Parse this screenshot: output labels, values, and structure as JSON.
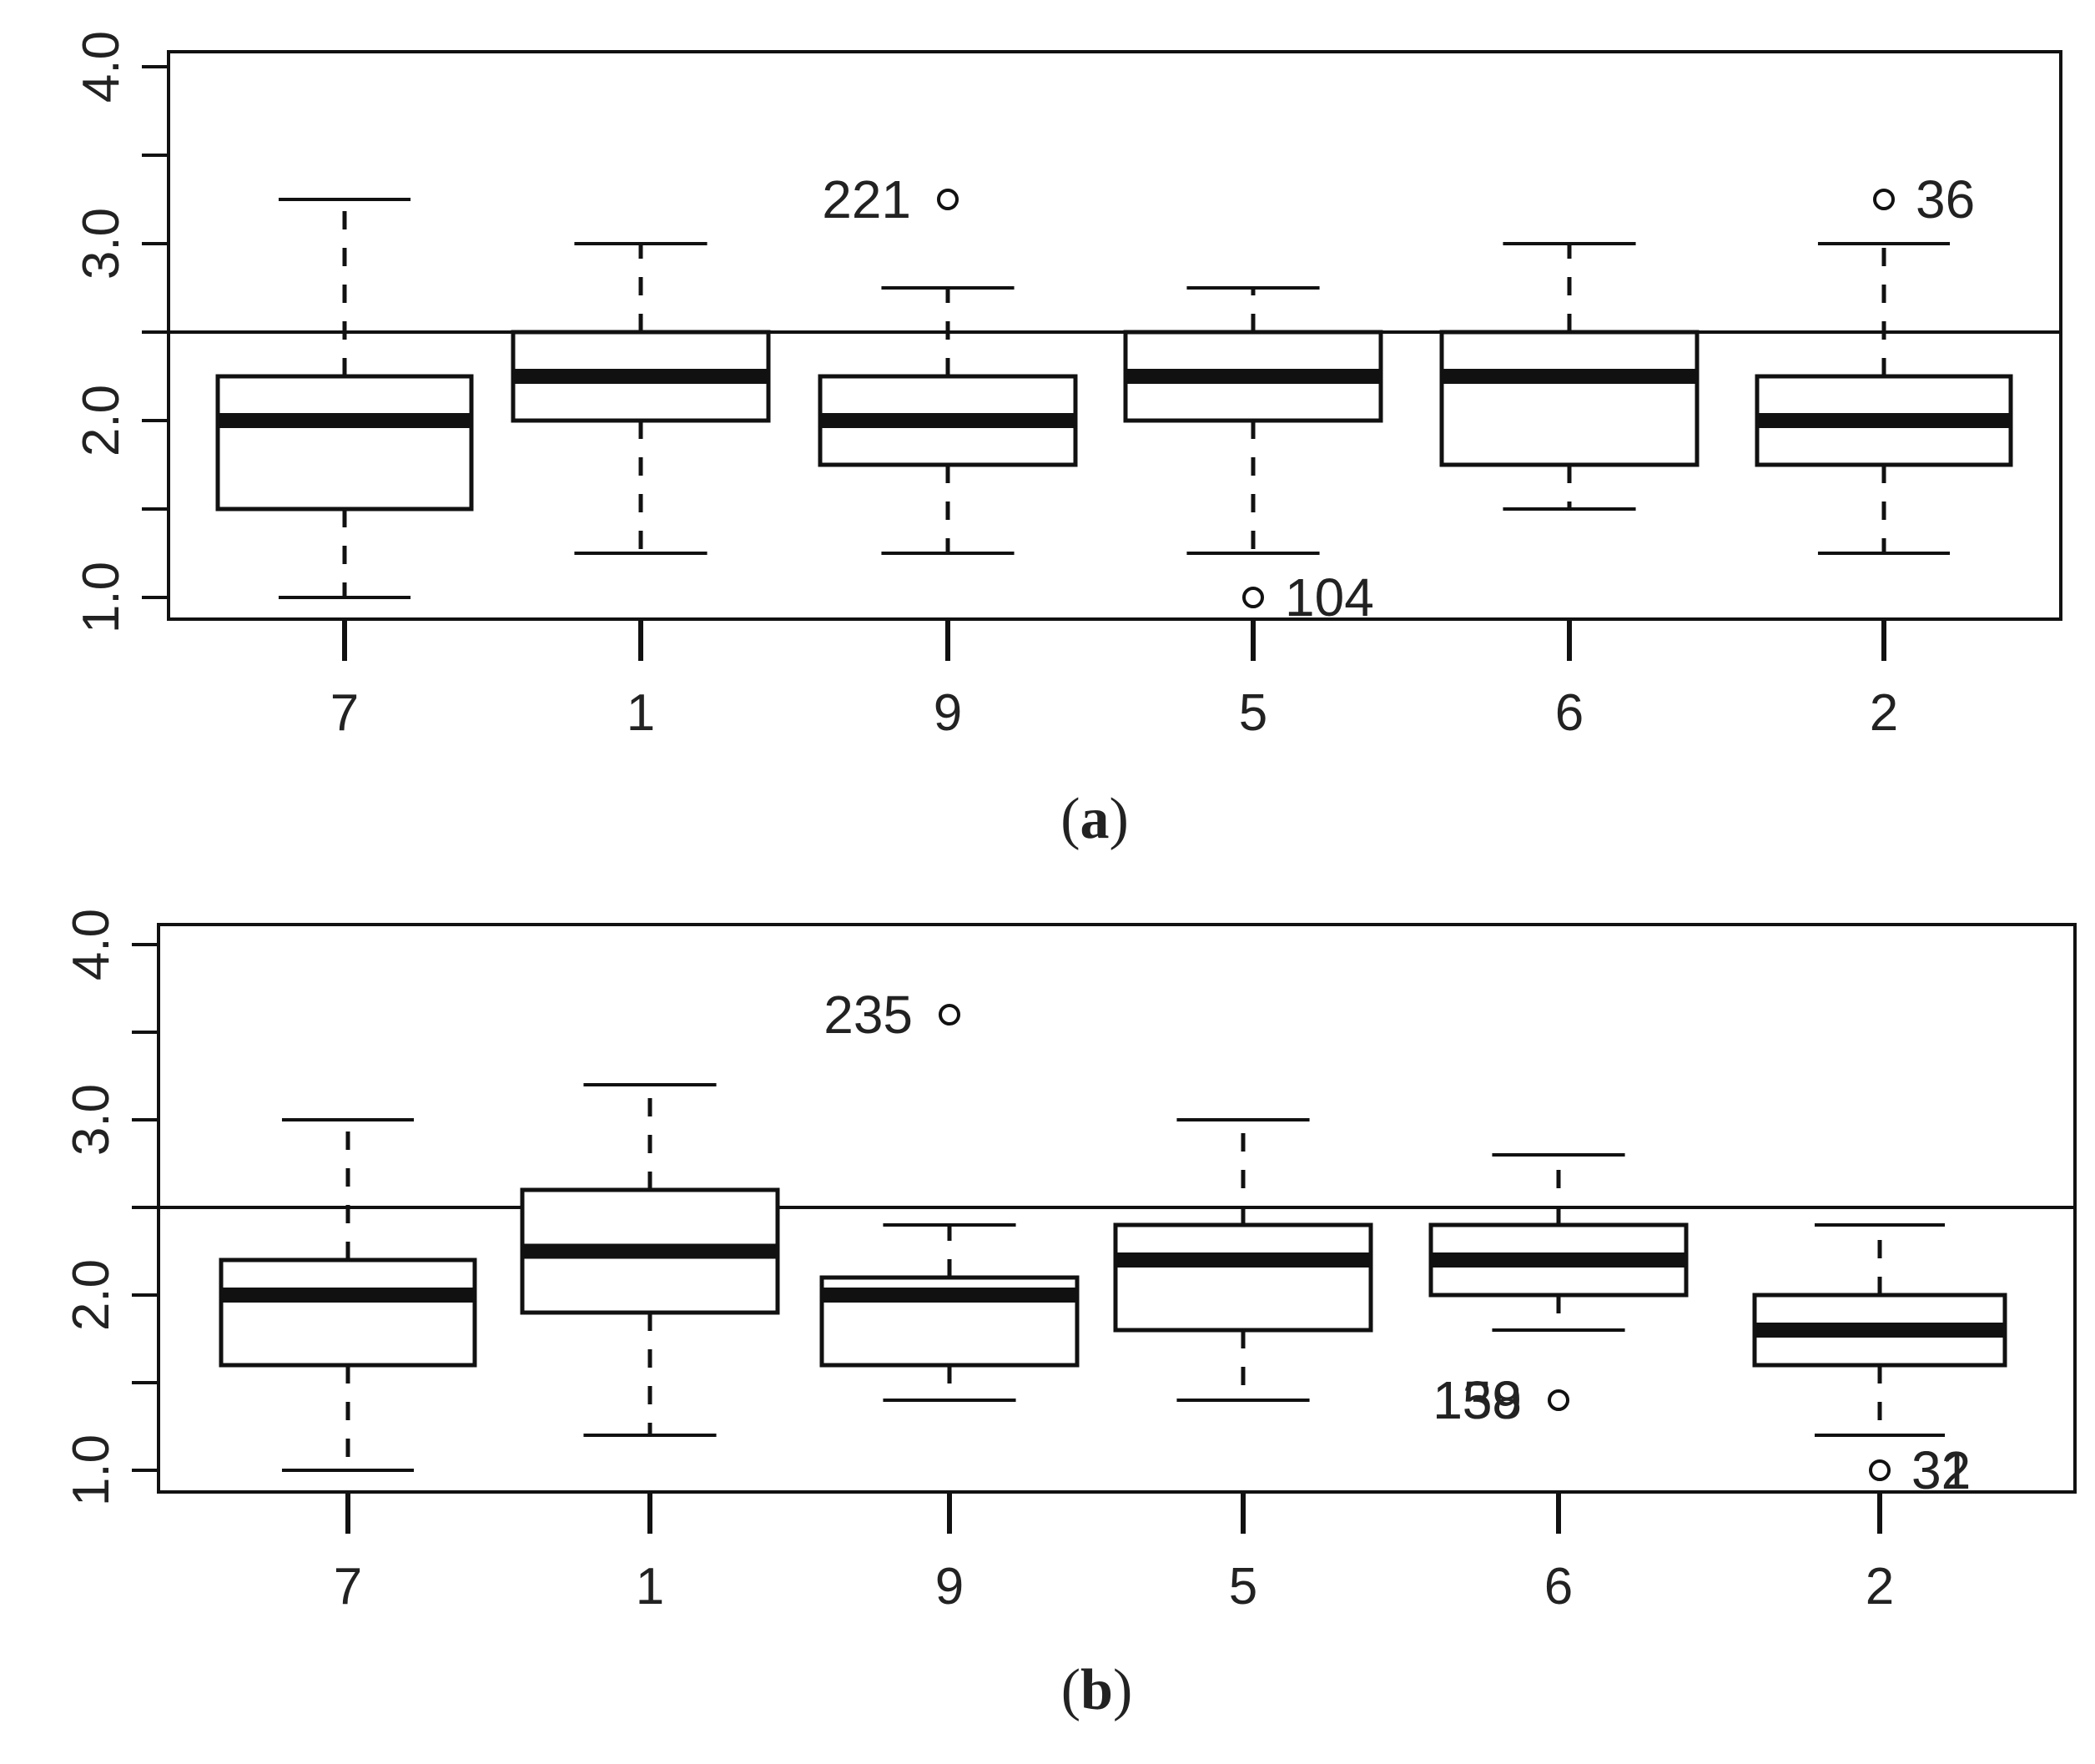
{
  "chart_data": [
    {
      "type": "box",
      "panel_label": "(a)",
      "panel_letter": "a",
      "ylim": [
        0.75,
        4.2
      ],
      "yticks": [
        1.0,
        1.5,
        2.0,
        2.5,
        3.0,
        3.5,
        4.0
      ],
      "ytick_labels": [
        "1.0",
        "2.0",
        "3.0",
        "4.0"
      ],
      "ytick_label_values": [
        1.0,
        2.0,
        3.0,
        4.0
      ],
      "reference_line": 2.5,
      "categories": [
        "7",
        "1",
        "9",
        "5",
        "6",
        "2"
      ],
      "boxes": [
        {
          "category": "7",
          "whisker_low": 1.0,
          "q1": 1.5,
          "median": 2.0,
          "q3": 2.25,
          "whisker_high": 3.25
        },
        {
          "category": "1",
          "whisker_low": 1.25,
          "q1": 2.0,
          "median": 2.25,
          "q3": 2.5,
          "whisker_high": 3.0
        },
        {
          "category": "9",
          "whisker_low": 1.25,
          "q1": 1.75,
          "median": 2.0,
          "q3": 2.25,
          "whisker_high": 2.75
        },
        {
          "category": "5",
          "whisker_low": 1.25,
          "q1": 2.0,
          "median": 2.25,
          "q3": 2.5,
          "whisker_high": 2.75
        },
        {
          "category": "6",
          "whisker_low": 1.5,
          "q1": 1.75,
          "median": 2.25,
          "q3": 2.5,
          "whisker_high": 3.0
        },
        {
          "category": "2",
          "whisker_low": 1.25,
          "q1": 1.75,
          "median": 2.0,
          "q3": 2.25,
          "whisker_high": 3.0
        }
      ],
      "outliers": [
        {
          "category": "9",
          "value": 3.25,
          "label": "221",
          "label_side": "left"
        },
        {
          "category": "5",
          "value": 1.0,
          "label": "104",
          "label_side": "right"
        },
        {
          "category": "2",
          "value": 3.25,
          "label": "36",
          "label_side": "right"
        }
      ]
    },
    {
      "type": "box",
      "panel_label": "(b)",
      "panel_letter": "b",
      "ylim": [
        0.75,
        4.2
      ],
      "yticks": [
        1.0,
        1.5,
        2.0,
        2.5,
        3.0,
        3.5,
        4.0
      ],
      "ytick_labels": [
        "1.0",
        "2.0",
        "3.0",
        "4.0"
      ],
      "ytick_label_values": [
        1.0,
        2.0,
        3.0,
        4.0
      ],
      "reference_line": 2.5,
      "categories": [
        "7",
        "1",
        "9",
        "5",
        "6",
        "2"
      ],
      "boxes": [
        {
          "category": "7",
          "whisker_low": 1.0,
          "q1": 1.6,
          "median": 2.0,
          "q3": 2.2,
          "whisker_high": 3.0
        },
        {
          "category": "1",
          "whisker_low": 1.2,
          "q1": 1.9,
          "median": 2.25,
          "q3": 2.6,
          "whisker_high": 3.2
        },
        {
          "category": "9",
          "whisker_low": 1.4,
          "q1": 1.6,
          "median": 2.0,
          "q3": 2.1,
          "whisker_high": 2.4
        },
        {
          "category": "5",
          "whisker_low": 1.4,
          "q1": 1.8,
          "median": 2.2,
          "q3": 2.4,
          "whisker_high": 3.0
        },
        {
          "category": "6",
          "whisker_low": 1.8,
          "q1": 2.0,
          "median": 2.2,
          "q3": 2.4,
          "whisker_high": 2.8
        },
        {
          "category": "2",
          "whisker_low": 1.2,
          "q1": 1.6,
          "median": 1.8,
          "q3": 2.0,
          "whisker_high": 2.4
        }
      ],
      "outliers": [
        {
          "category": "9",
          "value": 3.6,
          "label": "235",
          "label_side": "left"
        },
        {
          "category": "6",
          "value": 1.4,
          "label": "138",
          "label_side": "left",
          "overlap_label": "159"
        },
        {
          "category": "2",
          "value": 1.0,
          "label": "31",
          "label_side": "right",
          "overlap_label": "32"
        }
      ]
    }
  ]
}
